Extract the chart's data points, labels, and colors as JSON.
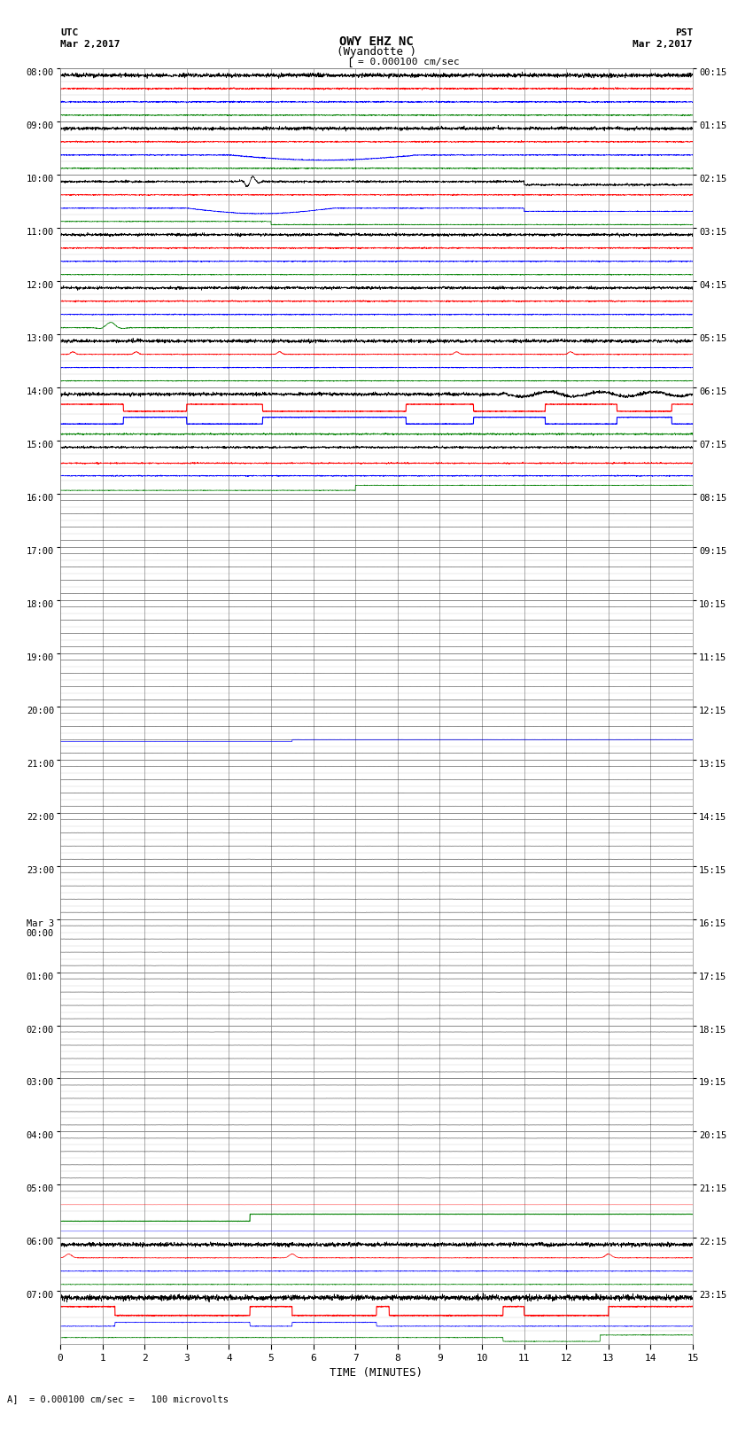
{
  "title_line1": "OWY EHZ NC",
  "title_line2": "(Wyandotte )",
  "scale_label": "= 0.000100 cm/sec",
  "left_timezone": "UTC",
  "left_date": "Mar 2,2017",
  "right_timezone": "PST",
  "right_date": "Mar 2,2017",
  "bottom_label": "TIME (MINUTES)",
  "footer_label": "= 0.000100 cm/sec =   100 microvolts",
  "utc_times": [
    "08:00",
    "09:00",
    "10:00",
    "11:00",
    "12:00",
    "13:00",
    "14:00",
    "15:00",
    "16:00",
    "17:00",
    "18:00",
    "19:00",
    "20:00",
    "21:00",
    "22:00",
    "23:00",
    "Mar 3\n00:00",
    "01:00",
    "02:00",
    "03:00",
    "04:00",
    "05:00",
    "06:00",
    "07:00"
  ],
  "pst_times": [
    "00:15",
    "01:15",
    "02:15",
    "03:15",
    "04:15",
    "05:15",
    "06:15",
    "07:15",
    "08:15",
    "09:15",
    "10:15",
    "11:15",
    "12:15",
    "13:15",
    "14:15",
    "15:15",
    "16:15",
    "17:15",
    "18:15",
    "19:15",
    "20:15",
    "21:15",
    "22:15",
    "23:15"
  ],
  "bg_color": "#ffffff",
  "grid_major_color": "#888888",
  "grid_minor_color": "#cccccc",
  "n_hours": 24,
  "subrows_per_hour": 4,
  "n_cols": 15
}
